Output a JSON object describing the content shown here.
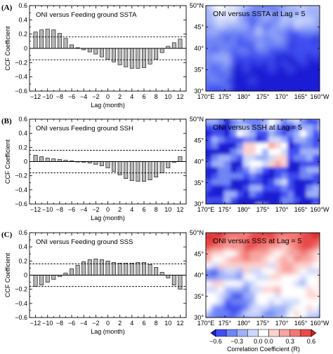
{
  "chart_data": [
    {
      "type": "bar",
      "panel_label": "(A)",
      "title": "ONI versus Feeding ground SSTA",
      "xlabel": "Lag (month)",
      "ylabel": "CCF Coefficient",
      "x": [
        -12,
        -11,
        -10,
        -9,
        -8,
        -7,
        -6,
        -5,
        -4,
        -3,
        -2,
        -1,
        0,
        1,
        2,
        3,
        4,
        5,
        6,
        7,
        8,
        9,
        10,
        11,
        12
      ],
      "values": [
        0.23,
        0.26,
        0.27,
        0.26,
        0.21,
        0.14,
        0.05,
        0.01,
        -0.02,
        -0.05,
        -0.08,
        -0.12,
        -0.15,
        -0.19,
        -0.23,
        -0.26,
        -0.28,
        -0.28,
        -0.27,
        -0.22,
        -0.15,
        -0.06,
        0.03,
        0.08,
        0.13
      ],
      "significance": [
        0.16,
        -0.16
      ],
      "xticks": [
        "−12",
        "−10",
        "−8",
        "−6",
        "−4",
        "−2",
        "0",
        "2",
        "4",
        "6",
        "8",
        "10",
        "12"
      ],
      "yticks": [
        "−0.6",
        "−0.4",
        "−0.2",
        "0",
        "0.2",
        "0.4",
        "0.6"
      ],
      "ylim": [
        -0.6,
        0.6
      ]
    },
    {
      "type": "bar",
      "panel_label": "(B)",
      "title": "ONI versus Feeding ground SSH",
      "xlabel": "Lag (month)",
      "ylabel": "CCF Coefficient",
      "x": [
        -12,
        -11,
        -10,
        -9,
        -8,
        -7,
        -6,
        -5,
        -4,
        -3,
        -2,
        -1,
        0,
        1,
        2,
        3,
        4,
        5,
        6,
        7,
        8,
        9,
        10,
        11,
        12
      ],
      "values": [
        0.09,
        0.07,
        0.05,
        0.04,
        0.03,
        0.02,
        0.01,
        0.0,
        -0.01,
        -0.02,
        -0.04,
        -0.06,
        -0.09,
        -0.14,
        -0.19,
        -0.24,
        -0.27,
        -0.28,
        -0.28,
        -0.26,
        -0.22,
        -0.16,
        -0.09,
        -0.01,
        0.07
      ],
      "significance": [
        0.16,
        -0.16
      ],
      "xticks": [
        "−12",
        "−10",
        "−8",
        "−6",
        "−4",
        "−2",
        "0",
        "2",
        "4",
        "6",
        "8",
        "10",
        "12"
      ],
      "yticks": [
        "−0.6",
        "−0.4",
        "−0.2",
        "0",
        "0.2",
        "0.4",
        "0.6"
      ],
      "ylim": [
        -0.6,
        0.6
      ]
    },
    {
      "type": "bar",
      "panel_label": "(C)",
      "title": "ONI versus Feeding ground SSS",
      "xlabel": "Lag (month)",
      "ylabel": "CCF Coefficient",
      "x": [
        -12,
        -11,
        -10,
        -9,
        -8,
        -7,
        -6,
        -5,
        -4,
        -3,
        -2,
        -1,
        0,
        1,
        2,
        3,
        4,
        5,
        6,
        7,
        8,
        9,
        10,
        11,
        12
      ],
      "values": [
        -0.16,
        -0.14,
        -0.1,
        -0.06,
        -0.02,
        0.03,
        0.09,
        0.14,
        0.19,
        0.22,
        0.23,
        0.22,
        0.2,
        0.18,
        0.17,
        0.17,
        0.17,
        0.18,
        0.18,
        0.15,
        0.11,
        0.04,
        -0.04,
        -0.14,
        -0.2
      ],
      "significance": [
        0.16,
        -0.16
      ],
      "xticks": [
        "−12",
        "−10",
        "−8",
        "−6",
        "−4",
        "−2",
        "0",
        "2",
        "4",
        "6",
        "8",
        "10",
        "12"
      ],
      "yticks": [
        "−0.6",
        "−0.4",
        "−0.2",
        "0",
        "0.2",
        "0.4",
        "0.6"
      ],
      "ylim": [
        -0.6,
        0.6
      ]
    },
    {
      "type": "heatmap",
      "title": "ONI versus SSTA at Lag = 5",
      "field": "ssta",
      "xticks": [
        "170°E",
        "175°",
        "180°",
        "175°",
        "170°",
        "165°",
        "160°W"
      ],
      "yticks": [
        "30°",
        "35°",
        "40°",
        "45°",
        "50°N"
      ]
    },
    {
      "type": "heatmap",
      "title": "ONI versus SSH at Lag = 5",
      "field": "ssh",
      "xticks": [
        "170°E",
        "175°",
        "180°",
        "175°",
        "170°",
        "165°",
        "160°W"
      ],
      "yticks": [
        "30°",
        "35°",
        "40°",
        "45°",
        "50°N"
      ]
    },
    {
      "type": "heatmap",
      "title": "ONI versus SSS at Lag = 5",
      "field": "sss",
      "xticks": [
        "170°E",
        "175°",
        "180°",
        "175°",
        "170°",
        "165°",
        "160°W"
      ],
      "yticks": [
        "30°",
        "35°",
        "40°",
        "45°",
        "50°N"
      ]
    }
  ],
  "colorbar": {
    "ticks": [
      "−0.6",
      "−0.3",
      "0.0",
      "0.0",
      "0.3",
      "0.6"
    ],
    "label": "Correlation Coefficient (R)",
    "colors": [
      "#1c1cd4",
      "#3f4ef0",
      "#6f84f5",
      "#9fb1f8",
      "#cdd8fb",
      "#ffffff",
      "#fbd2cf",
      "#f8a5a1",
      "#f27873",
      "#e84a48",
      "#d61f24"
    ]
  }
}
